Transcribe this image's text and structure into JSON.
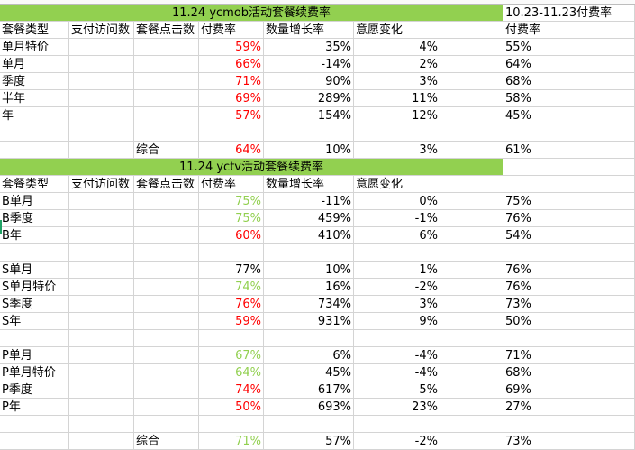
{
  "spreadsheet": {
    "colors": {
      "banner": "#92d050",
      "red_value": "#ff0000",
      "green_value": "#92d050",
      "gridline": "#d4d4d4"
    },
    "section_ycmob": {
      "title": "11.24 ycmob活动套餐续费率",
      "compare_header": "10.23-11.23付费率",
      "headers": [
        "套餐类型",
        "支付访问数",
        "套餐点击数",
        "付费率",
        "数量增长率",
        "意愿变化"
      ],
      "compare_subheader": "付费率",
      "rows": [
        {
          "type": "单月特价",
          "rate": "59%",
          "rate_color": "red",
          "growth": "35%",
          "change": "4%",
          "prev_rate": "55%"
        },
        {
          "type": "单月",
          "rate": "66%",
          "rate_color": "red",
          "growth": "-14%",
          "change": "2%",
          "prev_rate": "64%"
        },
        {
          "type": "季度",
          "rate": "71%",
          "rate_color": "red",
          "growth": "90%",
          "change": "3%",
          "prev_rate": "68%"
        },
        {
          "type": "半年",
          "rate": "69%",
          "rate_color": "red",
          "growth": "289%",
          "change": "11%",
          "prev_rate": "58%"
        },
        {
          "type": "年",
          "rate": "57%",
          "rate_color": "red",
          "growth": "154%",
          "change": "12%",
          "prev_rate": "45%"
        }
      ],
      "summary": {
        "label": "综合",
        "rate": "64%",
        "rate_color": "red",
        "growth": "10%",
        "change": "3%",
        "prev_rate": "61%"
      }
    },
    "section_yctv": {
      "title": "11.24 yctv活动套餐续费率",
      "headers": [
        "套餐类型",
        "支付访问数",
        "套餐点击数",
        "付费率",
        "数量增长率",
        "意愿变化"
      ],
      "groups": [
        [
          {
            "type": "B单月",
            "rate": "75%",
            "rate_color": "green",
            "growth": "-11%",
            "change": "0%",
            "prev_rate": "75%"
          },
          {
            "type": "B季度",
            "rate": "75%",
            "rate_color": "green",
            "growth": "459%",
            "change": "-1%",
            "prev_rate": "76%"
          },
          {
            "type": "B年",
            "rate": "60%",
            "rate_color": "red",
            "growth": "410%",
            "change": "6%",
            "prev_rate": "54%"
          }
        ],
        [
          {
            "type": "S单月",
            "rate": "77%",
            "rate_color": "black",
            "growth": "10%",
            "change": "1%",
            "prev_rate": "76%"
          },
          {
            "type": "S单月特价",
            "rate": "74%",
            "rate_color": "green",
            "growth": "16%",
            "change": "-2%",
            "prev_rate": "76%"
          },
          {
            "type": "S季度",
            "rate": "76%",
            "rate_color": "red",
            "growth": "734%",
            "change": "3%",
            "prev_rate": "73%"
          },
          {
            "type": "S年",
            "rate": "59%",
            "rate_color": "red",
            "growth": "931%",
            "change": "9%",
            "prev_rate": "50%"
          }
        ],
        [
          {
            "type": "P单月",
            "rate": "67%",
            "rate_color": "green",
            "growth": "6%",
            "change": "-4%",
            "prev_rate": "71%"
          },
          {
            "type": "P单月特价",
            "rate": "64%",
            "rate_color": "green",
            "growth": "45%",
            "change": "-4%",
            "prev_rate": "68%"
          },
          {
            "type": "P季度",
            "rate": "74%",
            "rate_color": "red",
            "growth": "617%",
            "change": "5%",
            "prev_rate": "69%"
          },
          {
            "type": "P年",
            "rate": "50%",
            "rate_color": "red",
            "growth": "693%",
            "change": "23%",
            "prev_rate": "27%"
          }
        ]
      ],
      "summary": {
        "label": "综合",
        "rate": "71%",
        "rate_color": "green",
        "growth": "57%",
        "change": "-2%",
        "prev_rate": "73%"
      }
    }
  }
}
